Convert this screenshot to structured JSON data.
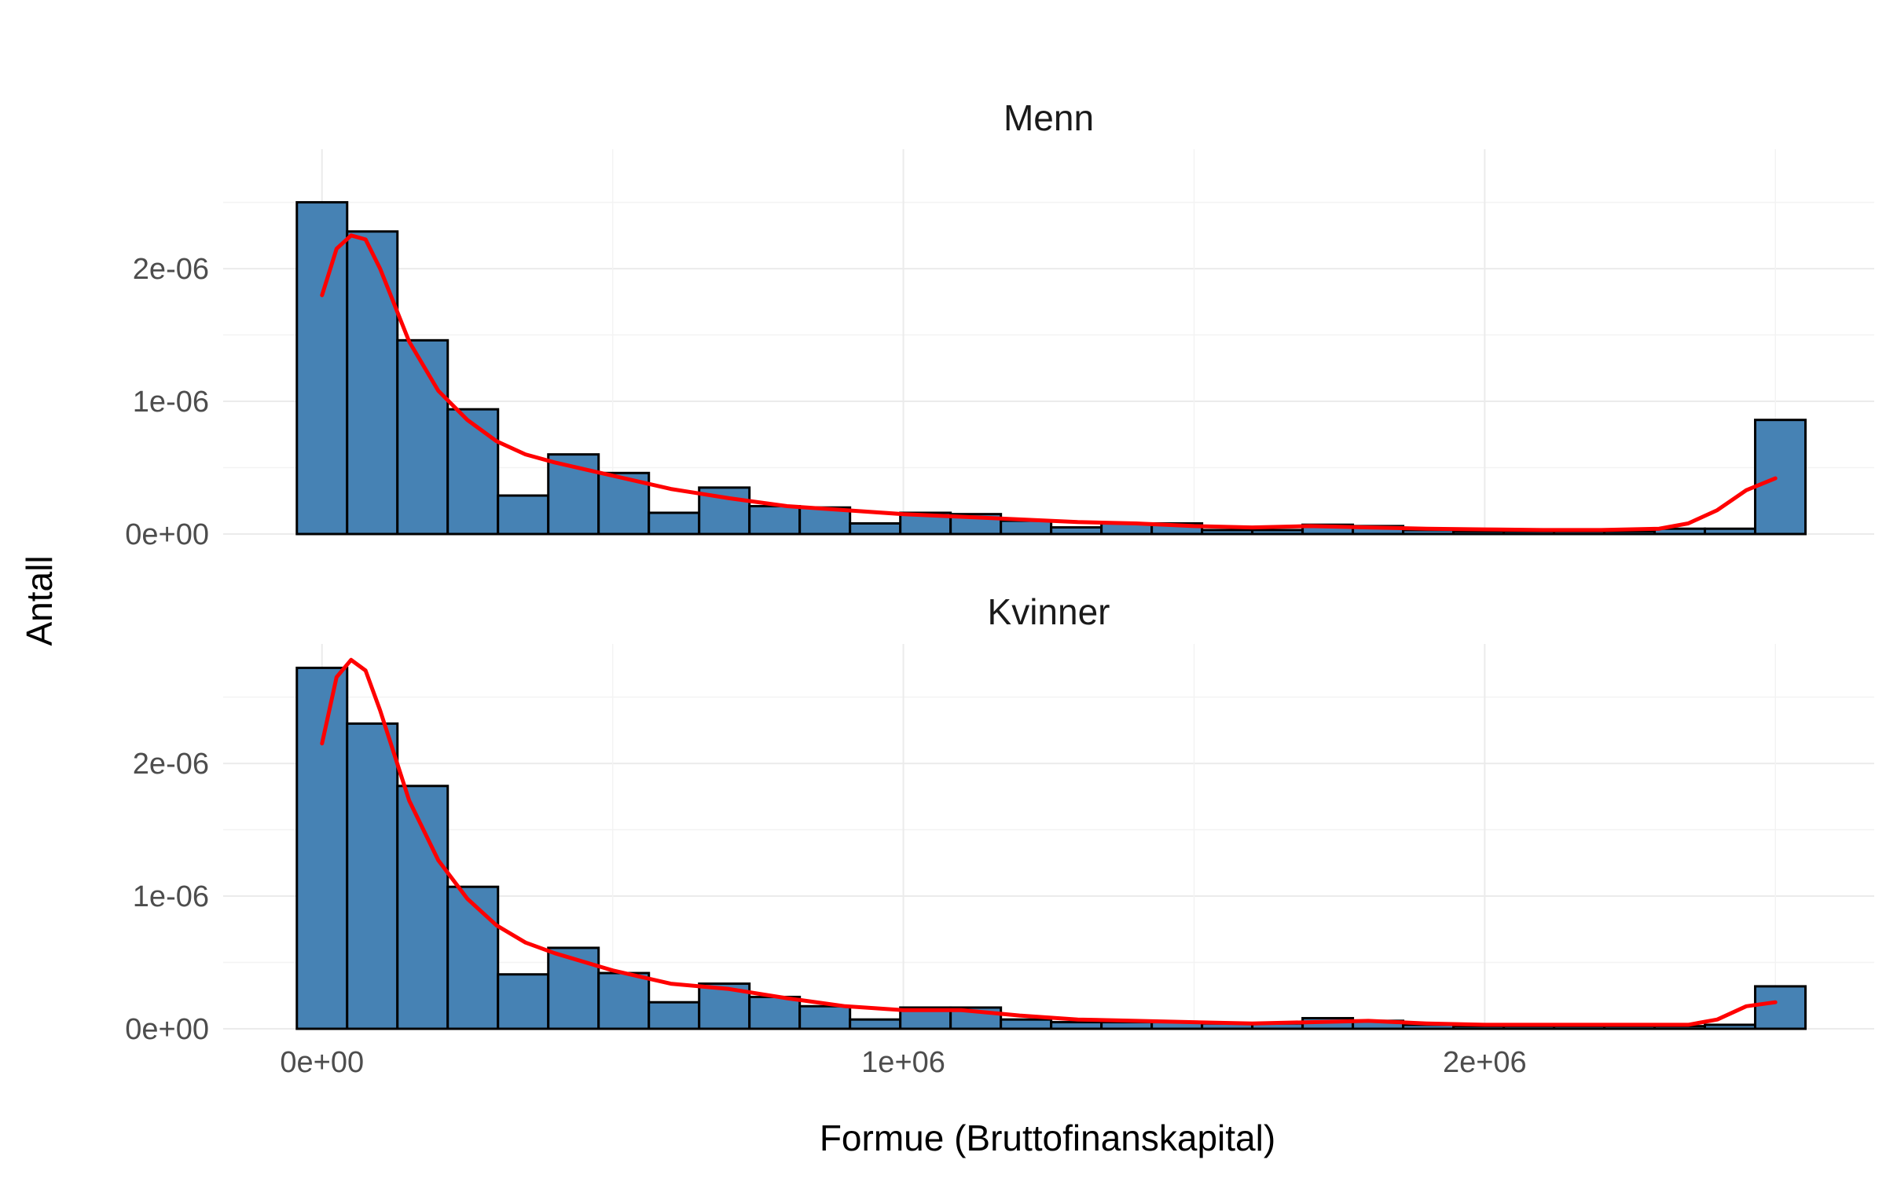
{
  "colors": {
    "bar_fill": "#4682b4",
    "bar_outline": "#000000",
    "density_line": "#ff0000"
  },
  "chart_data": {
    "type": "bar",
    "xlabel": "Formue (Bruttofinanskapital)",
    "ylabel": "Antall",
    "x_ticks": [
      {
        "value": 0,
        "label": "0e+00"
      },
      {
        "value": 1000000,
        "label": "1e+06"
      },
      {
        "value": 2000000,
        "label": "2e+06"
      }
    ],
    "xlim": [
      -170000,
      2670000
    ],
    "bin_width": 86500,
    "bin_start": -43250,
    "grid": true,
    "panels": [
      {
        "title": "Menn",
        "ylim": [
          0,
          2.9e-06
        ],
        "y_ticks": [
          {
            "value": 0,
            "label": "0e+00"
          },
          {
            "value": 1e-06,
            "label": "1e-06"
          },
          {
            "value": 2e-06,
            "label": "2e-06"
          }
        ],
        "histogram": [
          2.5e-06,
          2.28e-06,
          1.46e-06,
          9.4e-07,
          2.9e-07,
          6e-07,
          4.6e-07,
          1.6e-07,
          3.5e-07,
          2.1e-07,
          2e-07,
          8e-08,
          1.6e-07,
          1.5e-07,
          1e-07,
          5e-08,
          8e-08,
          8e-08,
          3e-08,
          3e-08,
          7e-08,
          6e-08,
          3e-08,
          2e-08,
          2e-08,
          2e-08,
          2e-08,
          4e-08,
          4e-08,
          8.6e-07
        ],
        "density": {
          "x": [
            0,
            25000,
            50000,
            75000,
            100000,
            150000,
            200000,
            250000,
            300000,
            350000,
            400000,
            500000,
            600000,
            700000,
            800000,
            900000,
            1000000,
            1100000,
            1200000,
            1300000,
            1400000,
            1500000,
            1600000,
            1700000,
            1800000,
            1900000,
            2000000,
            2100000,
            2200000,
            2300000,
            2350000,
            2400000,
            2450000,
            2500000
          ],
          "y": [
            1.8e-06,
            2.15e-06,
            2.25e-06,
            2.22e-06,
            2e-06,
            1.45e-06,
            1.08e-06,
            8.6e-07,
            7e-07,
            6e-07,
            5.4e-07,
            4.4e-07,
            3.4e-07,
            2.7e-07,
            2.1e-07,
            1.8e-07,
            1.5e-07,
            1.3e-07,
            1.1e-07,
            9e-08,
            8e-08,
            6e-08,
            5e-08,
            6e-08,
            5e-08,
            4e-08,
            3.5e-08,
            3e-08,
            3e-08,
            4e-08,
            8e-08,
            1.8e-07,
            3.3e-07,
            4.2e-07
          ]
        }
      },
      {
        "title": "Kvinner",
        "ylim": [
          0,
          2.9e-06
        ],
        "y_ticks": [
          {
            "value": 0,
            "label": "0e+00"
          },
          {
            "value": 1e-06,
            "label": "1e-06"
          },
          {
            "value": 2e-06,
            "label": "2e-06"
          }
        ],
        "histogram": [
          2.72e-06,
          2.3e-06,
          1.83e-06,
          1.07e-06,
          4.1e-07,
          6.1e-07,
          4.2e-07,
          2e-07,
          3.4e-07,
          2.4e-07,
          1.7e-07,
          7e-08,
          1.6e-07,
          1.6e-07,
          7e-08,
          5e-08,
          5e-08,
          5e-08,
          4e-08,
          4e-08,
          8e-08,
          6e-08,
          3e-08,
          2e-08,
          2e-08,
          2e-08,
          2e-08,
          2e-08,
          3e-08,
          3.2e-07
        ],
        "density": {
          "x": [
            0,
            25000,
            50000,
            75000,
            100000,
            150000,
            200000,
            250000,
            300000,
            350000,
            400000,
            500000,
            600000,
            700000,
            800000,
            900000,
            1000000,
            1100000,
            1200000,
            1300000,
            1400000,
            1500000,
            1600000,
            1700000,
            1800000,
            1900000,
            2000000,
            2100000,
            2200000,
            2300000,
            2350000,
            2400000,
            2450000,
            2500000
          ],
          "y": [
            2.15e-06,
            2.65e-06,
            2.78e-06,
            2.7e-06,
            2.4e-06,
            1.72e-06,
            1.27e-06,
            9.8e-07,
            7.8e-07,
            6.5e-07,
            5.7e-07,
            4.4e-07,
            3.4e-07,
            3e-07,
            2.3e-07,
            1.7e-07,
            1.4e-07,
            1.4e-07,
            1e-07,
            7e-08,
            6e-08,
            5e-08,
            4e-08,
            5e-08,
            6e-08,
            4e-08,
            3e-08,
            3e-08,
            3e-08,
            3e-08,
            3e-08,
            7e-08,
            1.7e-07,
            2e-07
          ]
        }
      }
    ]
  }
}
